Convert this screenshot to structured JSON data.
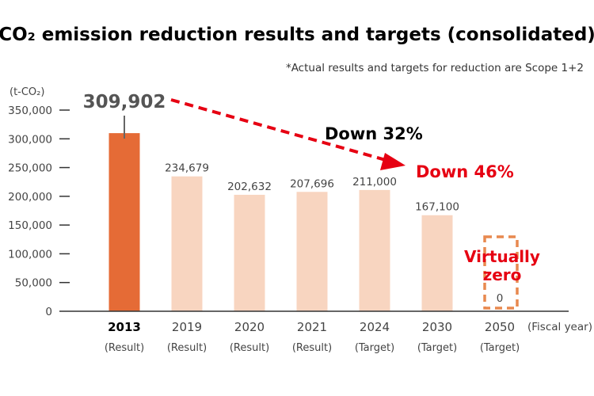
{
  "chart_data": {
    "type": "bar",
    "title": "CO₂ emission reduction results and targets (consolidated)",
    "note": "*Actual results and targets for reduction are Scope 1+2",
    "ylabel": "(t-CO₂)",
    "xlabel": "(Fiscal year)",
    "ylim": [
      0,
      350000
    ],
    "yticks": [
      "0",
      "50,000",
      "100,000",
      "150,000",
      "200,000",
      "250,000",
      "300,000",
      "350,000"
    ],
    "ytick_values": [
      0,
      50000,
      100000,
      150000,
      200000,
      250000,
      300000,
      350000
    ],
    "categories": [
      "2013",
      "2019",
      "2020",
      "2021",
      "2024",
      "2030",
      "2050"
    ],
    "category_types": [
      "(Result)",
      "(Result)",
      "(Result)",
      "(Result)",
      "(Target)",
      "(Target)",
      "(Target)"
    ],
    "values": [
      309902,
      234679,
      202632,
      207696,
      211000,
      167100,
      0
    ],
    "value_labels": [
      "309,902",
      "234,679",
      "202,632",
      "207,696",
      "211,000",
      "167,100",
      "0"
    ],
    "annotations": {
      "down32": "Down 32%",
      "down46": "Down 46%",
      "virtually_zero_line1": "Virtually",
      "virtually_zero_line2": "zero"
    },
    "grid": false,
    "colors": {
      "base_bar": "#e56b36",
      "other_bars": "#f8d5c0",
      "target_box": "#e8894f",
      "accent_red": "#e60012",
      "label_gray": "#555555"
    }
  }
}
